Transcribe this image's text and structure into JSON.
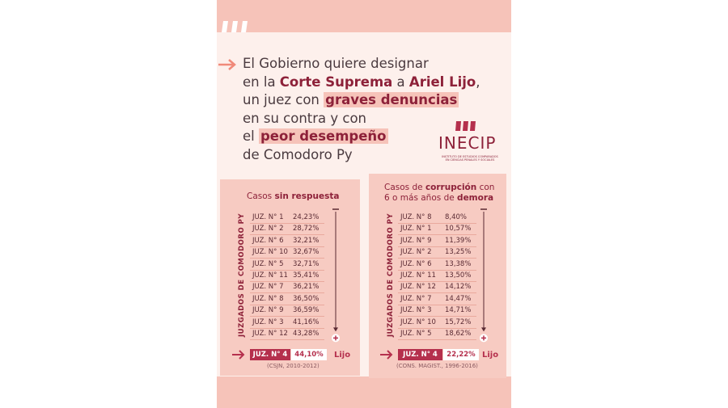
{
  "headline": {
    "lines": [
      [
        {
          "text": "El Gobierno quiere designar",
          "style": "plain"
        }
      ],
      [
        {
          "text": "en la ",
          "style": "plain"
        },
        {
          "text": "Corte Suprema",
          "style": "bold"
        },
        {
          "text": " a ",
          "style": "plain"
        },
        {
          "text": "Ariel Lijo",
          "style": "bold"
        },
        {
          "text": ",",
          "style": "plain"
        }
      ],
      [
        {
          "text": "un juez con ",
          "style": "plain"
        },
        {
          "text": "graves denuncias",
          "style": "highlight"
        }
      ],
      [
        {
          "text": "en su contra y con",
          "style": "plain"
        }
      ],
      [
        {
          "text": "el ",
          "style": "plain"
        },
        {
          "text": "peor desempeño",
          "style": "highlight"
        }
      ],
      [
        {
          "text": "de Comodoro Py",
          "style": "plain"
        }
      ]
    ]
  },
  "logo": {
    "name": "INECIP",
    "subtitle": "INSTITUTO DE ESTUDIOS COMPARADOS EN CIENCIAS PENALES Y SOCIALES"
  },
  "cards": [
    {
      "title": [
        [
          {
            "text": "Casos ",
            "style": "plain"
          },
          {
            "text": "sin respuesta",
            "style": "bold"
          }
        ]
      ],
      "axis_label": "JUZGADOS DE COMODORO PY",
      "rows": [
        [
          "JUZ. N° 1",
          "24,23%"
        ],
        [
          "JUZ. N° 2",
          "28,72%"
        ],
        [
          "JUZ. N° 6",
          "32,21%"
        ],
        [
          "JUZ. N° 10",
          "32,67%"
        ],
        [
          "JUZ. N° 5",
          "32,71%"
        ],
        [
          "JUZ. N° 11",
          "35,41%"
        ],
        [
          "JUZ. N° 7",
          "36,21%"
        ],
        [
          "JUZ. N° 8",
          "36,50%"
        ],
        [
          "JUZ. N° 9",
          "36,59%"
        ],
        [
          "JUZ. N° 3",
          "41,16%"
        ],
        [
          "JUZ. N° 12",
          "43,28%"
        ]
      ],
      "highlight": {
        "label": "JUZ. N° 4",
        "value": "44,10%",
        "name": "Lijo"
      },
      "source": "(CSJN, 2010-2012)"
    },
    {
      "title": [
        [
          {
            "text": "Casos de ",
            "style": "plain"
          },
          {
            "text": "corrupción",
            "style": "bold"
          },
          {
            "text": " con",
            "style": "plain"
          }
        ],
        [
          {
            "text": "6 o más años de ",
            "style": "plain"
          },
          {
            "text": "demora",
            "style": "bold"
          }
        ]
      ],
      "axis_label": "JUZGADOS DE COMODORO PY",
      "rows": [
        [
          "JUZ. N° 8",
          "8,40%"
        ],
        [
          "JUZ. N° 1",
          "10,57%"
        ],
        [
          "JUZ. N° 9",
          "11,39%"
        ],
        [
          "JUZ. N° 2",
          "13,25%"
        ],
        [
          "JUZ. N° 6",
          "13,38%"
        ],
        [
          "JUZ. N° 11",
          "13,50%"
        ],
        [
          "JUZ. N° 12",
          "14,12%"
        ],
        [
          "JUZ. N° 7",
          "14,47%"
        ],
        [
          "JUZ. N° 3",
          "14,71%"
        ],
        [
          "JUZ. N° 10",
          "15,72%"
        ],
        [
          "JUZ. N° 5",
          "18,62%"
        ]
      ],
      "highlight": {
        "label": "JUZ. N° 4",
        "value": "22,22%",
        "name": "Lijo"
      },
      "source": "(CONS. MAGIST., 1996-2016)"
    }
  ]
}
